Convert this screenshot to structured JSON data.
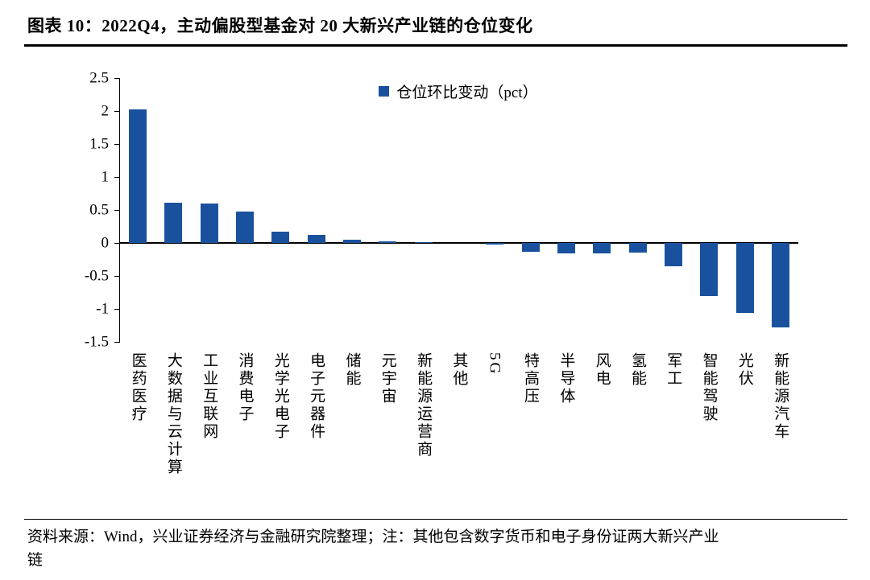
{
  "title": "图表 10：2022Q4，主动偏股型基金对 20 大新兴产业链的仓位变化",
  "chart_data": {
    "type": "bar",
    "legend": "仓位环比变动（pct）",
    "legend_position": "top-center",
    "bar_color": "#1A519E",
    "categories": [
      "医药医疗",
      "大数据与云计算",
      "工业互联网",
      "消费电子",
      "光学光电子",
      "电子元器件",
      "储能",
      "元宇宙",
      "新能源运营商",
      "其他",
      "5G",
      "特高压",
      "半导体",
      "风电",
      "氢能",
      "军工",
      "智能驾驶",
      "光伏",
      "新能源汽车"
    ],
    "values": [
      2.02,
      0.61,
      0.6,
      0.47,
      0.17,
      0.12,
      0.05,
      0.02,
      0.01,
      0.0,
      -0.02,
      -0.13,
      -0.16,
      -0.16,
      -0.15,
      -0.35,
      -0.8,
      -1.06,
      -1.28
    ],
    "ylim": [
      -1.5,
      2.5
    ],
    "yticks": [
      2.5,
      2,
      1.5,
      1,
      0.5,
      0,
      -0.5,
      -1,
      -1.5
    ],
    "grid": false,
    "xlabel": "",
    "ylabel": ""
  },
  "footer": {
    "text": "资料来源：Wind，兴业证券经济与金融研究院整理；注：其他包含数字货币和电子身份证两大新兴产业\n链"
  }
}
